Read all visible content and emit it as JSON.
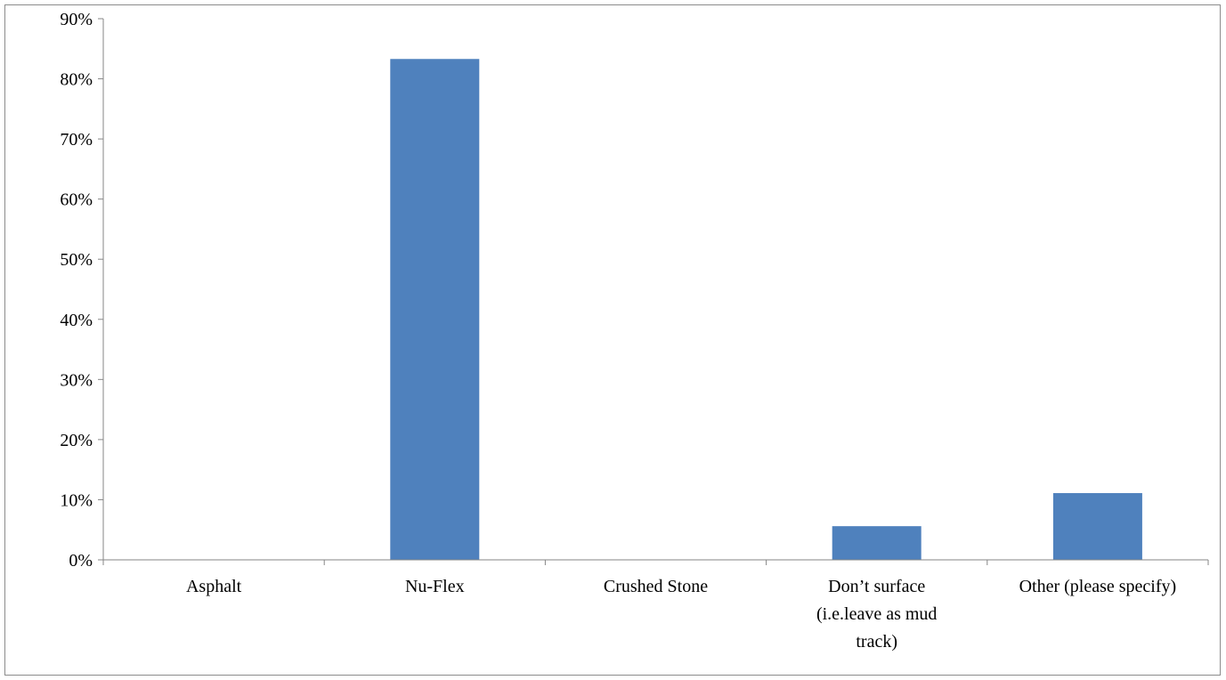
{
  "chart_data": {
    "type": "bar",
    "categories": [
      [
        "Asphalt"
      ],
      [
        "Nu-Flex"
      ],
      [
        "Crushed Stone"
      ],
      [
        "Don’t surface",
        "(i.e.leave as mud",
        "track)"
      ],
      [
        "Other (please specify)"
      ]
    ],
    "values": [
      0,
      83.3,
      0,
      5.6,
      11.1
    ],
    "ylim": [
      0,
      90
    ],
    "yticks": [
      "0%",
      "10%",
      "20%",
      "30%",
      "40%",
      "50%",
      "60%",
      "70%",
      "80%",
      "90%"
    ],
    "grid": false,
    "legend": "none",
    "bar_color": "#4f81bd",
    "axis_color": "#868686"
  }
}
